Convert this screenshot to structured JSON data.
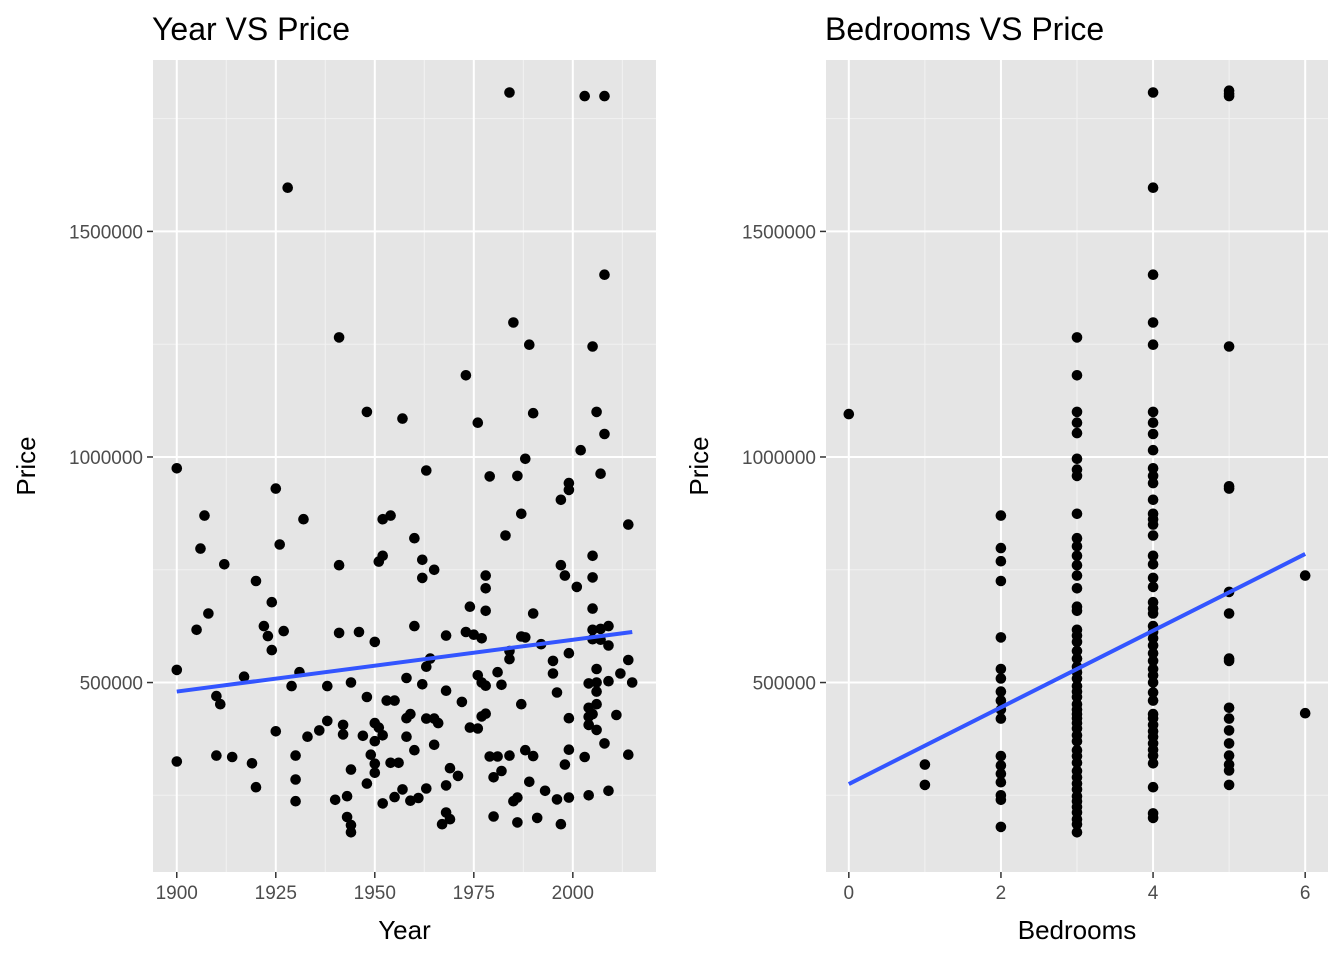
{
  "chart_data": [
    {
      "type": "scatter",
      "title": "Year VS Price",
      "xlabel": "Year",
      "ylabel": "Price",
      "xlim": [
        1894,
        2021
      ],
      "ylim": [
        80000,
        1880000
      ],
      "x_ticks": [
        1900,
        1925,
        1950,
        1975,
        2000
      ],
      "y_ticks": [
        500000,
        1000000,
        1500000
      ],
      "y_tick_labels": [
        "500000",
        "1000000",
        "1500000"
      ],
      "grid": true,
      "background": "#e5e5e5",
      "point_color": "#000000",
      "fit_color": "#3355ff",
      "fit_line": {
        "x": [
          1900,
          2015
        ],
        "y": [
          480000,
          612000
        ]
      },
      "points": [
        [
          1900,
          975000
        ],
        [
          1900,
          528000
        ],
        [
          1900,
          325000
        ],
        [
          1905,
          617000
        ],
        [
          1906,
          797000
        ],
        [
          1907,
          870000
        ],
        [
          1908,
          653000
        ],
        [
          1910,
          470000
        ],
        [
          1910,
          338000
        ],
        [
          1911,
          452000
        ],
        [
          1912,
          762000
        ],
        [
          1914,
          335000
        ],
        [
          1917,
          513000
        ],
        [
          1919,
          321000
        ],
        [
          1920,
          725000
        ],
        [
          1920,
          268000
        ],
        [
          1922,
          625000
        ],
        [
          1923,
          603000
        ],
        [
          1924,
          678000
        ],
        [
          1924,
          572000
        ],
        [
          1925,
          930000
        ],
        [
          1925,
          392000
        ],
        [
          1926,
          806000
        ],
        [
          1927,
          614000
        ],
        [
          1928,
          1597000
        ],
        [
          1929,
          492000
        ],
        [
          1930,
          338000
        ],
        [
          1930,
          285000
        ],
        [
          1930,
          237000
        ],
        [
          1931,
          523000
        ],
        [
          1932,
          862000
        ],
        [
          1933,
          380000
        ],
        [
          1936,
          394000
        ],
        [
          1938,
          492000
        ],
        [
          1938,
          415000
        ],
        [
          1940,
          240000
        ],
        [
          1941,
          1265000
        ],
        [
          1941,
          760000
        ],
        [
          1941,
          610000
        ],
        [
          1942,
          406000
        ],
        [
          1942,
          385000
        ],
        [
          1943,
          248000
        ],
        [
          1943,
          202000
        ],
        [
          1944,
          184000
        ],
        [
          1944,
          168000
        ],
        [
          1944,
          500000
        ],
        [
          1944,
          307000
        ],
        [
          1946,
          612000
        ],
        [
          1947,
          382000
        ],
        [
          1948,
          1100000
        ],
        [
          1948,
          468000
        ],
        [
          1948,
          276000
        ],
        [
          1949,
          340000
        ],
        [
          1950,
          590000
        ],
        [
          1950,
          410000
        ],
        [
          1950,
          370000
        ],
        [
          1950,
          320000
        ],
        [
          1950,
          300000
        ],
        [
          1951,
          768000
        ],
        [
          1951,
          400000
        ],
        [
          1952,
          862000
        ],
        [
          1952,
          781000
        ],
        [
          1952,
          383000
        ],
        [
          1952,
          232000
        ],
        [
          1953,
          460000
        ],
        [
          1954,
          870000
        ],
        [
          1954,
          322000
        ],
        [
          1955,
          460000
        ],
        [
          1955,
          246000
        ],
        [
          1956,
          322000
        ],
        [
          1957,
          1085000
        ],
        [
          1957,
          263000
        ],
        [
          1958,
          510000
        ],
        [
          1958,
          421000
        ],
        [
          1958,
          380000
        ],
        [
          1959,
          430000
        ],
        [
          1959,
          238000
        ],
        [
          1960,
          820000
        ],
        [
          1960,
          625000
        ],
        [
          1960,
          350000
        ],
        [
          1961,
          244000
        ],
        [
          1962,
          772000
        ],
        [
          1962,
          732000
        ],
        [
          1962,
          496000
        ],
        [
          1963,
          970000
        ],
        [
          1963,
          535000
        ],
        [
          1963,
          420000
        ],
        [
          1963,
          265000
        ],
        [
          1964,
          553000
        ],
        [
          1965,
          750000
        ],
        [
          1965,
          420000
        ],
        [
          1965,
          362000
        ],
        [
          1966,
          410000
        ],
        [
          1967,
          186000
        ],
        [
          1968,
          604000
        ],
        [
          1968,
          482000
        ],
        [
          1968,
          212000
        ],
        [
          1968,
          272000
        ],
        [
          1969,
          310000
        ],
        [
          1969,
          197000
        ],
        [
          1971,
          293000
        ],
        [
          1972,
          457000
        ],
        [
          1973,
          1181000
        ],
        [
          1973,
          612000
        ],
        [
          1974,
          668000
        ],
        [
          1974,
          400000
        ],
        [
          1975,
          606000
        ],
        [
          1976,
          1076000
        ],
        [
          1976,
          516000
        ],
        [
          1976,
          398000
        ],
        [
          1977,
          598000
        ],
        [
          1977,
          500000
        ],
        [
          1977,
          425000
        ],
        [
          1978,
          737000
        ],
        [
          1978,
          709000
        ],
        [
          1978,
          659000
        ],
        [
          1978,
          493000
        ],
        [
          1978,
          431000
        ],
        [
          1979,
          957000
        ],
        [
          1979,
          336000
        ],
        [
          1980,
          203000
        ],
        [
          1980,
          290000
        ],
        [
          1981,
          523000
        ],
        [
          1981,
          336000
        ],
        [
          1982,
          495000
        ],
        [
          1982,
          304000
        ],
        [
          1983,
          826000
        ],
        [
          1984,
          1808000
        ],
        [
          1984,
          570000
        ],
        [
          1984,
          552000
        ],
        [
          1984,
          338000
        ],
        [
          1985,
          1298000
        ],
        [
          1985,
          237000
        ],
        [
          1986,
          958000
        ],
        [
          1986,
          245000
        ],
        [
          1986,
          190000
        ],
        [
          1987,
          874000
        ],
        [
          1987,
          602000
        ],
        [
          1987,
          452000
        ],
        [
          1988,
          996000
        ],
        [
          1988,
          600000
        ],
        [
          1988,
          350000
        ],
        [
          1989,
          1249000
        ],
        [
          1989,
          280000
        ],
        [
          1990,
          1097000
        ],
        [
          1990,
          653000
        ],
        [
          1990,
          337000
        ],
        [
          1991,
          200000
        ],
        [
          1992,
          585000
        ],
        [
          1993,
          260000
        ],
        [
          1995,
          548000
        ],
        [
          1995,
          520000
        ],
        [
          1996,
          241000
        ],
        [
          1996,
          478000
        ],
        [
          1997,
          905000
        ],
        [
          1997,
          760000
        ],
        [
          1997,
          186000
        ],
        [
          1998,
          737000
        ],
        [
          1998,
          318000
        ],
        [
          1999,
          942000
        ],
        [
          1999,
          927000
        ],
        [
          1999,
          565000
        ],
        [
          1999,
          421000
        ],
        [
          1999,
          351000
        ],
        [
          1999,
          245000
        ],
        [
          2001,
          712000
        ],
        [
          2002,
          1015000
        ],
        [
          2003,
          1800000
        ],
        [
          2003,
          335000
        ],
        [
          2004,
          498000
        ],
        [
          2004,
          444000
        ],
        [
          2004,
          424000
        ],
        [
          2004,
          406000
        ],
        [
          2004,
          250000
        ],
        [
          2005,
          1245000
        ],
        [
          2005,
          781000
        ],
        [
          2005,
          733000
        ],
        [
          2005,
          664000
        ],
        [
          2005,
          617000
        ],
        [
          2005,
          596000
        ],
        [
          2005,
          430000
        ],
        [
          2006,
          1100000
        ],
        [
          2006,
          530000
        ],
        [
          2006,
          500000
        ],
        [
          2006,
          480000
        ],
        [
          2006,
          452000
        ],
        [
          2006,
          395000
        ],
        [
          2007,
          963000
        ],
        [
          2007,
          619000
        ],
        [
          2007,
          595000
        ],
        [
          2008,
          1800000
        ],
        [
          2008,
          1404000
        ],
        [
          2008,
          1051000
        ],
        [
          2008,
          365000
        ],
        [
          2009,
          625000
        ],
        [
          2009,
          582000
        ],
        [
          2009,
          503000
        ],
        [
          2009,
          260000
        ],
        [
          2011,
          428000
        ],
        [
          2012,
          520000
        ],
        [
          2014,
          850000
        ],
        [
          2014,
          550000
        ],
        [
          2014,
          340000
        ],
        [
          2015,
          500000
        ]
      ]
    },
    {
      "type": "scatter",
      "title": "Bedrooms VS Price",
      "xlabel": "Bedrooms",
      "ylabel": "Price",
      "xlim": [
        -0.3,
        6.3
      ],
      "ylim": [
        80000,
        1880000
      ],
      "x_ticks": [
        0,
        2,
        4,
        6
      ],
      "y_ticks": [
        500000,
        1000000,
        1500000
      ],
      "y_tick_labels": [
        "500000",
        "1000000",
        "1500000"
      ],
      "grid": true,
      "background": "#e5e5e5",
      "point_color": "#000000",
      "fit_color": "#3355ff",
      "fit_line": {
        "x": [
          0,
          6
        ],
        "y": [
          275000,
          785000
        ]
      },
      "points": [
        [
          0,
          1095000
        ],
        [
          1,
          318000
        ],
        [
          1,
          273000
        ],
        [
          2,
          870000
        ],
        [
          2,
          798000
        ],
        [
          2,
          769000
        ],
        [
          2,
          725000
        ],
        [
          2,
          600000
        ],
        [
          2,
          530000
        ],
        [
          2,
          509000
        ],
        [
          2,
          480000
        ],
        [
          2,
          460000
        ],
        [
          2,
          440000
        ],
        [
          2,
          420000
        ],
        [
          2,
          337000
        ],
        [
          2,
          316000
        ],
        [
          2,
          298000
        ],
        [
          2,
          279000
        ],
        [
          2,
          250000
        ],
        [
          2,
          240000
        ],
        [
          2,
          180000
        ],
        [
          3,
          1265000
        ],
        [
          3,
          1181000
        ],
        [
          3,
          1100000
        ],
        [
          3,
          1076000
        ],
        [
          3,
          1053000
        ],
        [
          3,
          996000
        ],
        [
          3,
          972000
        ],
        [
          3,
          958000
        ],
        [
          3,
          874000
        ],
        [
          3,
          820000
        ],
        [
          3,
          802000
        ],
        [
          3,
          781000
        ],
        [
          3,
          760000
        ],
        [
          3,
          737000
        ],
        [
          3,
          709000
        ],
        [
          3,
          668000
        ],
        [
          3,
          659000
        ],
        [
          3,
          617000
        ],
        [
          3,
          604000
        ],
        [
          3,
          590000
        ],
        [
          3,
          570000
        ],
        [
          3,
          553000
        ],
        [
          3,
          535000
        ],
        [
          3,
          523000
        ],
        [
          3,
          509000
        ],
        [
          3,
          492000
        ],
        [
          3,
          480000
        ],
        [
          3,
          468000
        ],
        [
          3,
          452000
        ],
        [
          3,
          440000
        ],
        [
          3,
          430000
        ],
        [
          3,
          421000
        ],
        [
          3,
          410000
        ],
        [
          3,
          398000
        ],
        [
          3,
          383000
        ],
        [
          3,
          370000
        ],
        [
          3,
          350000
        ],
        [
          3,
          337000
        ],
        [
          3,
          322000
        ],
        [
          3,
          304000
        ],
        [
          3,
          290000
        ],
        [
          3,
          276000
        ],
        [
          3,
          263000
        ],
        [
          3,
          248000
        ],
        [
          3,
          237000
        ],
        [
          3,
          224000
        ],
        [
          3,
          212000
        ],
        [
          3,
          197000
        ],
        [
          3,
          186000
        ],
        [
          3,
          168000
        ],
        [
          4,
          1808000
        ],
        [
          4,
          1597000
        ],
        [
          4,
          1404000
        ],
        [
          4,
          1298000
        ],
        [
          4,
          1249000
        ],
        [
          4,
          1100000
        ],
        [
          4,
          1076000
        ],
        [
          4,
          1051000
        ],
        [
          4,
          1015000
        ],
        [
          4,
          975000
        ],
        [
          4,
          958000
        ],
        [
          4,
          942000
        ],
        [
          4,
          905000
        ],
        [
          4,
          874000
        ],
        [
          4,
          862000
        ],
        [
          4,
          850000
        ],
        [
          4,
          826000
        ],
        [
          4,
          781000
        ],
        [
          4,
          762000
        ],
        [
          4,
          732000
        ],
        [
          4,
          712000
        ],
        [
          4,
          678000
        ],
        [
          4,
          664000
        ],
        [
          4,
          653000
        ],
        [
          4,
          625000
        ],
        [
          4,
          612000
        ],
        [
          4,
          598000
        ],
        [
          4,
          582000
        ],
        [
          4,
          565000
        ],
        [
          4,
          548000
        ],
        [
          4,
          530000
        ],
        [
          4,
          516000
        ],
        [
          4,
          500000
        ],
        [
          4,
          478000
        ],
        [
          4,
          460000
        ],
        [
          4,
          430000
        ],
        [
          4,
          421000
        ],
        [
          4,
          406000
        ],
        [
          4,
          392000
        ],
        [
          4,
          380000
        ],
        [
          4,
          365000
        ],
        [
          4,
          351000
        ],
        [
          4,
          338000
        ],
        [
          4,
          321000
        ],
        [
          4,
          268000
        ],
        [
          4,
          210000
        ],
        [
          4,
          200000
        ],
        [
          5,
          1812000
        ],
        [
          5,
          1805000
        ],
        [
          5,
          1800000
        ],
        [
          5,
          1245000
        ],
        [
          5,
          935000
        ],
        [
          5,
          930000
        ],
        [
          5,
          701000
        ],
        [
          5,
          653000
        ],
        [
          5,
          553000
        ],
        [
          5,
          548000
        ],
        [
          5,
          444000
        ],
        [
          5,
          420000
        ],
        [
          5,
          394000
        ],
        [
          5,
          365000
        ],
        [
          5,
          338000
        ],
        [
          5,
          318000
        ],
        [
          5,
          305000
        ],
        [
          5,
          273000
        ],
        [
          6,
          737000
        ],
        [
          6,
          432000
        ]
      ]
    }
  ]
}
